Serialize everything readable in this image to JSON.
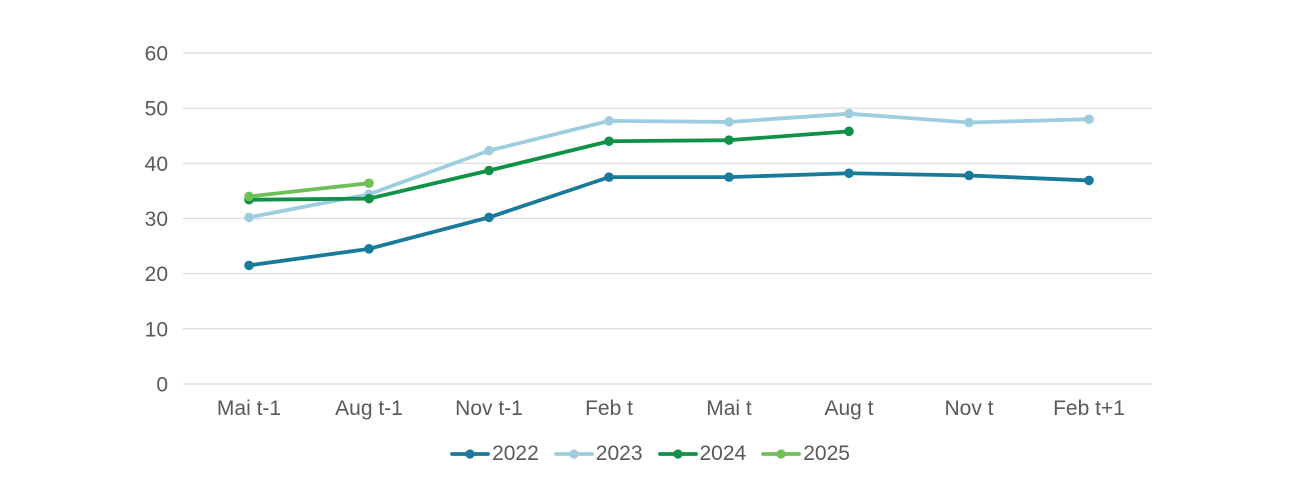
{
  "chart_data": {
    "type": "line",
    "title": "",
    "xlabel": "",
    "ylabel": "",
    "categories": [
      "Mai t-1",
      "Aug t-1",
      "Nov t-1",
      "Feb t",
      "Mai t",
      "Aug t",
      "Nov t",
      "Feb t+1"
    ],
    "series": [
      {
        "name": "2022",
        "color": "#1a7a9c",
        "values": [
          21.5,
          24.5,
          30.2,
          37.5,
          37.5,
          38.2,
          37.8,
          36.9
        ]
      },
      {
        "name": "2023",
        "color": "#9dcdde",
        "values": [
          30.2,
          34.4,
          42.3,
          47.7,
          47.5,
          49.0,
          47.4,
          48.0
        ]
      },
      {
        "name": "2024",
        "color": "#0f9148",
        "values": [
          33.4,
          33.6,
          38.7,
          44.0,
          44.2,
          45.8,
          null,
          null
        ]
      },
      {
        "name": "2025",
        "color": "#70c05a",
        "values": [
          34.0,
          36.4,
          null,
          null,
          null,
          null,
          null,
          null
        ]
      }
    ],
    "ylim": [
      0,
      60
    ],
    "y_ticks": [
      0,
      10,
      20,
      30,
      40,
      50,
      60
    ],
    "grid": true,
    "legend_position": "bottom",
    "axis_text_color": "#595959",
    "gridline_color": "#d9d9d9",
    "background": "#ffffff"
  }
}
